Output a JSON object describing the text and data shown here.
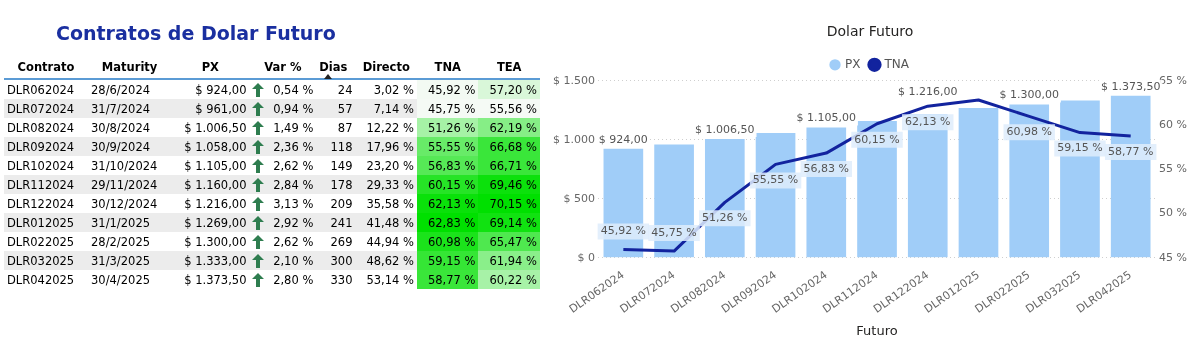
{
  "chart_data": [
    {
      "type": "heatmap",
      "title": "Contratos de Dolar Futuro",
      "ylabel": "Contrato",
      "categories": [
        "Maturity",
        "PX",
        "Var %",
        "Dias",
        "Directo",
        "TNA",
        "TEA"
      ],
      "y_categories": [
        "DLR062024",
        "DLR072024",
        "DLR082024",
        "DLR092024",
        "DLR102024",
        "DLR112024",
        "DLR122024",
        "DLR012025",
        "DLR022025",
        "DLR032025",
        "DLR042025"
      ],
      "cells": [
        [
          null,
          null,
          null,
          null,
          null,
          45.92,
          57.2
        ],
        [
          null,
          null,
          null,
          null,
          null,
          45.75,
          55.56
        ],
        [
          null,
          null,
          null,
          null,
          null,
          51.26,
          62.19
        ],
        [
          null,
          null,
          null,
          null,
          null,
          55.55,
          66.68
        ],
        [
          null,
          null,
          null,
          null,
          null,
          56.83,
          66.71
        ],
        [
          null,
          null,
          null,
          null,
          null,
          60.15,
          69.46
        ],
        [
          null,
          null,
          null,
          null,
          null,
          62.13,
          70.15
        ],
        [
          null,
          null,
          null,
          null,
          null,
          62.83,
          69.14
        ],
        [
          null,
          null,
          null,
          null,
          null,
          60.98,
          65.47
        ],
        [
          null,
          null,
          null,
          null,
          null,
          59.15,
          61.94
        ],
        [
          null,
          null,
          null,
          null,
          null,
          58.77,
          60.22
        ]
      ],
      "cell_labels": [
        [
          "28/6/2024",
          "$ 924,00",
          "0,54 %",
          "24",
          "3,02 %",
          "45,92 %",
          "57,20 %"
        ],
        [
          "31/7/2024",
          "$ 961,00",
          "0,94 %",
          "57",
          "7,14 %",
          "45,75 %",
          "55,56 %"
        ],
        [
          "30/8/2024",
          "$ 1.006,50",
          "1,49 %",
          "87",
          "12,22 %",
          "51,26 %",
          "62,19 %"
        ],
        [
          "30/9/2024",
          "$ 1.058,00",
          "2,36 %",
          "118",
          "17,96 %",
          "55,55 %",
          "66,68 %"
        ],
        [
          "31/10/2024",
          "$ 1.105,00",
          "2,62 %",
          "149",
          "23,20 %",
          "56,83 %",
          "66,71 %"
        ],
        [
          "29/11/2024",
          "$ 1.160,00",
          "2,84 %",
          "178",
          "29,33 %",
          "60,15 %",
          "69,46 %"
        ],
        [
          "30/12/2024",
          "$ 1.216,00",
          "3,13 %",
          "209",
          "35,58 %",
          "62,13 %",
          "70,15 %"
        ],
        [
          "31/1/2025",
          "$ 1.269,00",
          "2,92 %",
          "241",
          "41,48 %",
          "62,83 %",
          "69,14 %"
        ],
        [
          "28/2/2025",
          "$ 1.300,00",
          "2,62 %",
          "269",
          "44,94 %",
          "60,98 %",
          "65,47 %"
        ],
        [
          "31/3/2025",
          "$ 1.333,00",
          "2,10 %",
          "300",
          "48,62 %",
          "59,15 %",
          "61,94 %"
        ],
        [
          "30/4/2025",
          "$ 1.373,50",
          "2,80 %",
          "330",
          "53,14 %",
          "58,77 %",
          "60,22 %"
        ]
      ]
    },
    {
      "type": "bar",
      "title": "Dolar Futuro",
      "xlabel": "Futuro",
      "categories": [
        "DLR062024",
        "DLR072024",
        "DLR082024",
        "DLR092024",
        "DLR102024",
        "DLR112024",
        "DLR122024",
        "DLR012025",
        "DLR022025",
        "DLR032025",
        "DLR042025"
      ],
      "series": [
        {
          "name": "PX",
          "type": "bar",
          "color": "#a0cdf8",
          "values": [
            924,
            961,
            1006.5,
            1058,
            1105,
            1160,
            1216,
            1269,
            1300,
            1333,
            1373.5
          ],
          "value_labels": [
            "$ 924,00",
            null,
            "$ 1.006,50",
            null,
            "$ 1.105,00",
            null,
            "$ 1.216,00",
            null,
            "$ 1.300,00",
            null,
            "$ 1.373,50"
          ]
        },
        {
          "name": "TNA",
          "type": "line",
          "axis": "y2",
          "color": "#12239e",
          "values": [
            45.92,
            45.75,
            51.26,
            55.55,
            56.83,
            60.15,
            62.13,
            62.83,
            60.98,
            59.15,
            58.77
          ],
          "value_labels": [
            "45,92 %",
            "45,75 %",
            "51,26 %",
            "55,55 %",
            "56,83 %",
            "60,15 %",
            "62,13 %",
            null,
            "60,98 %",
            "59,15 %",
            "58,77 %"
          ]
        }
      ],
      "ylim": [
        0,
        1500
      ],
      "yticks": [
        {
          "value": 0,
          "label": "$ 0"
        },
        {
          "value": 500,
          "label": "$ 500"
        },
        {
          "value": 1000,
          "label": "$ 1.000"
        },
        {
          "value": 1500,
          "label": "$ 1.500"
        }
      ],
      "y2lim": [
        45,
        65
      ],
      "y2ticks": [
        {
          "value": 45,
          "label": "45 %"
        },
        {
          "value": 50,
          "label": "50 %"
        },
        {
          "value": 55,
          "label": "55 %"
        },
        {
          "value": 60,
          "label": "60 %"
        },
        {
          "value": 65,
          "label": "65 %"
        }
      ],
      "grid": "y",
      "legend": "top",
      "marker": "none"
    }
  ]
}
